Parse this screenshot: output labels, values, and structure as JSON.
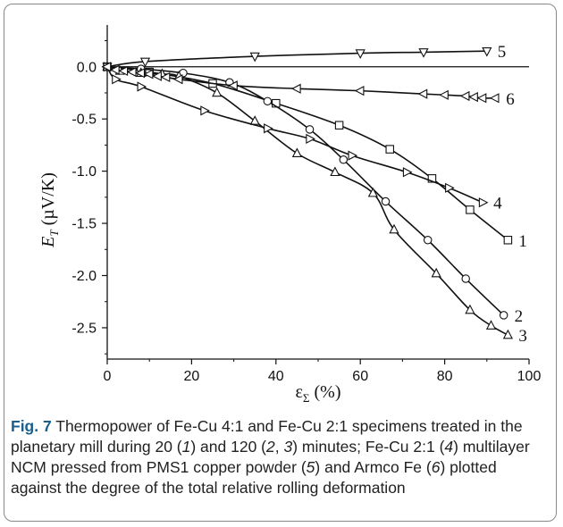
{
  "chart_data": {
    "type": "line",
    "xlabel": "ε_Σ (%)",
    "ylabel": "E_T (µV/K)",
    "xlim": [
      0,
      100
    ],
    "ylim": [
      -2.8,
      0.4
    ],
    "x_ticks": [
      0,
      20,
      40,
      60,
      80,
      100
    ],
    "y_ticks": [
      0.0,
      -0.5,
      -1.0,
      -1.5,
      -2.0,
      -2.5
    ],
    "grid": false,
    "reference_line": 0.0,
    "series": [
      {
        "name": "1",
        "marker": "square",
        "x": [
          0,
          10,
          25,
          40,
          55,
          67,
          77,
          86,
          95
        ],
        "y": [
          0,
          -0.05,
          -0.16,
          -0.35,
          -0.56,
          -0.79,
          -1.07,
          -1.37,
          -1.66
        ]
      },
      {
        "name": "2",
        "marker": "circle",
        "x": [
          0,
          8,
          18,
          29,
          38,
          48,
          56,
          66,
          76,
          85,
          94
        ],
        "y": [
          0,
          -0.02,
          -0.06,
          -0.15,
          -0.33,
          -0.6,
          -0.89,
          -1.29,
          -1.66,
          -2.03,
          -2.38
        ]
      },
      {
        "name": "3",
        "marker": "triangle-up",
        "x": [
          0,
          3,
          8,
          13,
          17,
          26,
          35,
          45,
          54,
          63,
          68,
          78,
          86,
          91,
          95
        ],
        "y": [
          0,
          -0.04,
          -0.06,
          -0.07,
          -0.09,
          -0.25,
          -0.52,
          -0.83,
          -1.01,
          -1.21,
          -1.56,
          -1.98,
          -2.33,
          -2.48,
          -2.57
        ]
      },
      {
        "name": "4",
        "marker": "triangle-right",
        "x": [
          0,
          2,
          8,
          23,
          38,
          48,
          58,
          71,
          81,
          89
        ],
        "y": [
          0,
          -0.12,
          -0.19,
          -0.42,
          -0.59,
          -0.69,
          -0.85,
          -1.01,
          -1.16,
          -1.3
        ]
      },
      {
        "name": "5",
        "marker": "triangle-down",
        "x": [
          0,
          9,
          35,
          60,
          75,
          90
        ],
        "y": [
          0,
          0.05,
          0.1,
          0.13,
          0.14,
          0.15
        ]
      },
      {
        "name": "6",
        "marker": "triangle-left",
        "x": [
          0,
          2,
          4,
          6,
          8,
          10,
          12,
          14,
          17,
          30,
          45,
          60,
          75,
          80,
          85,
          87,
          89,
          92
        ],
        "y": [
          0,
          -0.03,
          -0.04,
          -0.05,
          -0.06,
          -0.07,
          -0.09,
          -0.1,
          -0.12,
          -0.18,
          -0.21,
          -0.23,
          -0.26,
          -0.27,
          -0.28,
          -0.29,
          -0.3,
          -0.3
        ]
      }
    ]
  },
  "caption": {
    "label": "Fig. 7",
    "text_1": " Thermopower of Fe-Cu 4:1 and Fe-Cu 2:1 specimens treated in the planetary mill during 20 (",
    "n1": "1",
    "text_2": ") and 120 (",
    "n2": "2",
    "text_3": ", ",
    "n3": "3",
    "text_4": ") minutes; Fe-Cu 2:1 (",
    "n4": "4",
    "text_5": ") multilayer NCM pressed from PMS1 copper powder (",
    "n5": "5",
    "text_6": ") and Armco Fe (",
    "n6": "6",
    "text_7": ") plotted against the degree of the total relative rolling deformation"
  }
}
